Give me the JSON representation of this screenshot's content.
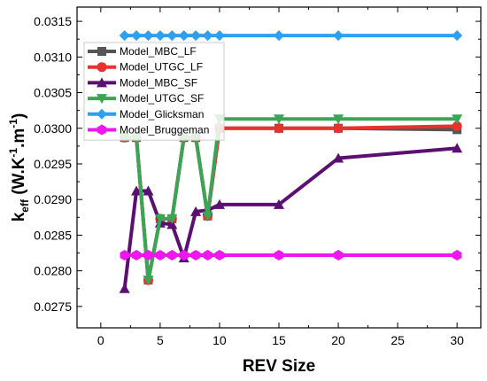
{
  "chart_data": {
    "type": "line",
    "title": "",
    "xlabel": "REV Size",
    "ylabel": {
      "base": "k",
      "sub": "eff",
      "unit_open": " (W.K",
      "exp1": "-1",
      "mid": ".m",
      "exp2": "-1",
      "close": ")"
    },
    "xlim": [
      -2,
      32
    ],
    "ylim": [
      0.0272,
      0.0317
    ],
    "x_ticks": [
      0,
      5,
      10,
      15,
      20,
      25,
      30
    ],
    "x_tick_labels": [
      "0",
      "5",
      "10",
      "15",
      "20",
      "25",
      "30"
    ],
    "y_ticks": [
      0.0275,
      0.028,
      0.0285,
      0.029,
      0.0295,
      0.03,
      0.0305,
      0.031,
      0.0315
    ],
    "y_tick_labels": [
      "0.0275",
      "0.0280",
      "0.0285",
      "0.0290",
      "0.0295",
      "0.0300",
      "0.0305",
      "0.0310",
      "0.0315"
    ],
    "grid": false,
    "legend_position": "top-left",
    "x": [
      2,
      3,
      4,
      5,
      6,
      7,
      8,
      9,
      10,
      15,
      20,
      30
    ],
    "series": [
      {
        "name": "Model_MBC_LF",
        "color": "#555555",
        "marker": "square",
        "values": [
          0.02987,
          0.02987,
          0.02787,
          0.02873,
          0.02873,
          0.02987,
          0.02987,
          0.02877,
          0.03,
          0.03,
          0.03,
          0.02998
        ]
      },
      {
        "name": "Model_UTGC_LF",
        "color": "#e8322d",
        "marker": "circle",
        "values": [
          0.02987,
          0.02987,
          0.02787,
          0.02873,
          0.02873,
          0.02987,
          0.02987,
          0.02877,
          0.03,
          0.03,
          0.03,
          0.03003
        ]
      },
      {
        "name": "Model_MBC_SF",
        "color": "#5c0f73",
        "marker": "triangle-up",
        "values": [
          0.02775,
          0.02912,
          0.02912,
          0.02867,
          0.02865,
          0.02818,
          0.02883,
          0.02885,
          0.02893,
          0.02893,
          0.02958,
          0.02972
        ]
      },
      {
        "name": "Model_UTGC_SF",
        "color": "#3aa655",
        "marker": "triangle-down",
        "values": [
          0.02987,
          0.02987,
          0.02787,
          0.02873,
          0.02873,
          0.02987,
          0.02987,
          0.02877,
          0.03013,
          0.03013,
          0.03013,
          0.03013
        ]
      },
      {
        "name": "Model_Glicksman",
        "color": "#2f9fef",
        "marker": "diamond",
        "values": [
          0.0313,
          0.0313,
          0.0313,
          0.0313,
          0.0313,
          0.0313,
          0.0313,
          0.0313,
          0.0313,
          0.0313,
          0.0313,
          0.0313
        ]
      },
      {
        "name": "Model_Bruggeman",
        "color": "#ee17ee",
        "marker": "hexagon",
        "values": [
          0.02822,
          0.02822,
          0.02822,
          0.02822,
          0.02822,
          0.02822,
          0.02822,
          0.02822,
          0.02822,
          0.02822,
          0.02822,
          0.02822
        ]
      }
    ]
  }
}
